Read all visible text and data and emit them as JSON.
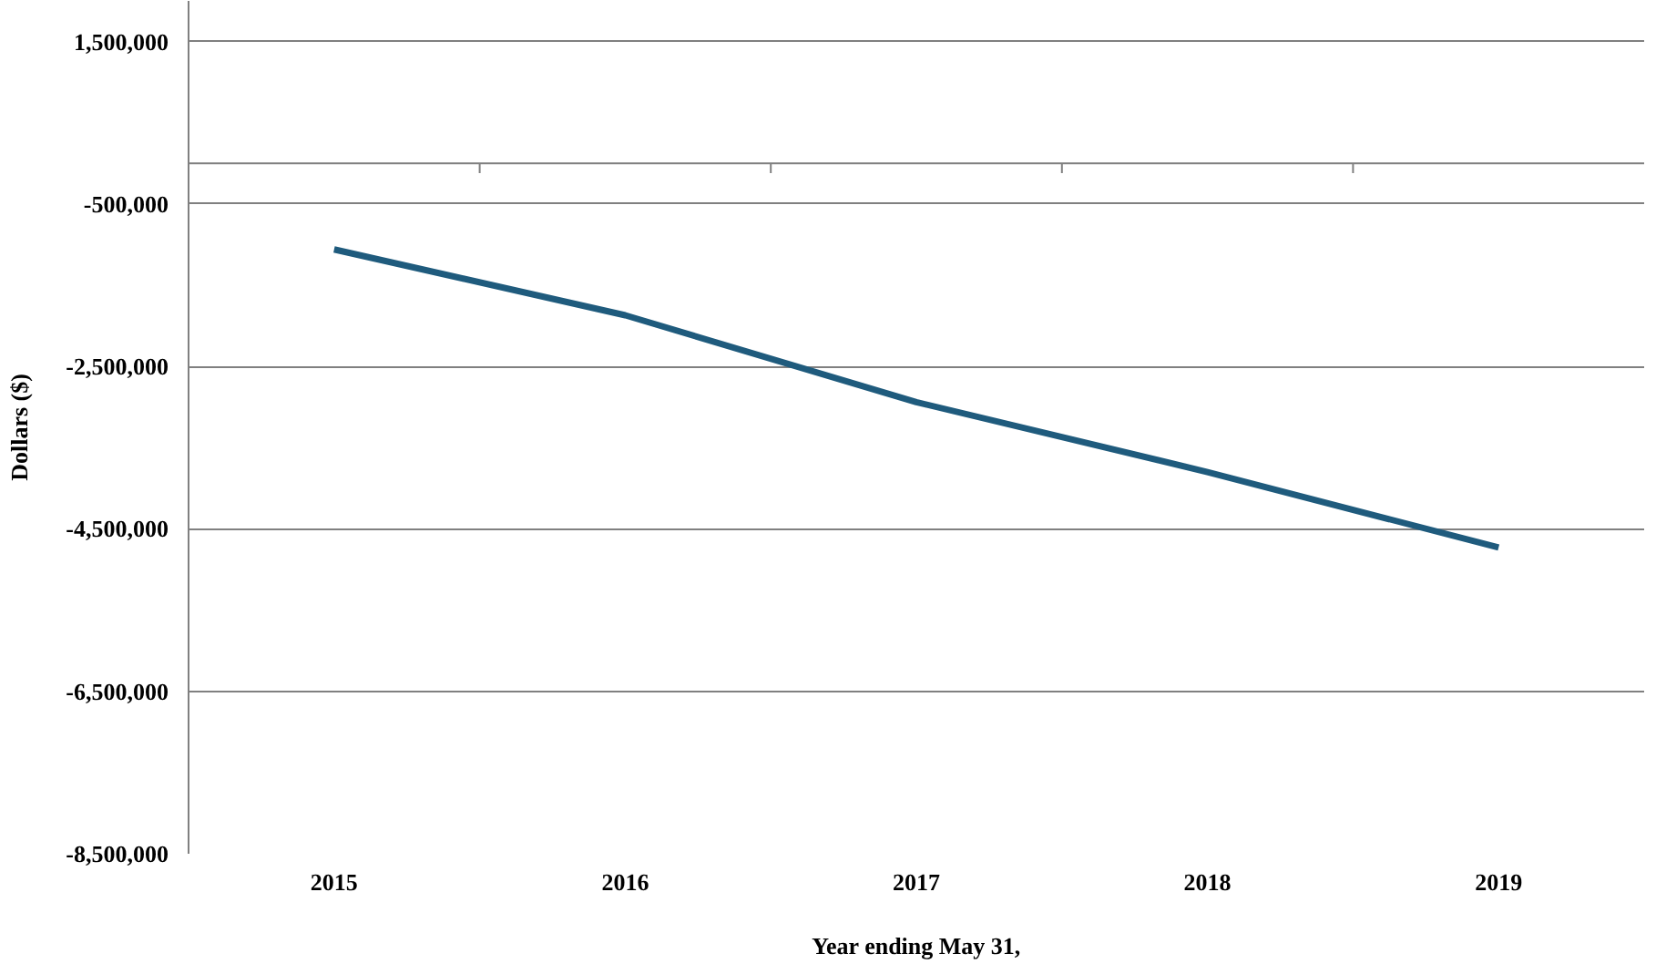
{
  "chart_data": {
    "type": "line",
    "xlabel": "Year ending May 31,",
    "ylabel": "Dollars ($)",
    "categories": [
      "2015",
      "2016",
      "2017",
      "2018",
      "2019"
    ],
    "series": [
      {
        "color": "#1f5b7d",
        "values": [
          -1060000,
          -1870000,
          -2940000,
          -3800000,
          -4730000
        ]
      }
    ],
    "ylim": [
      -8500000,
      2000000
    ],
    "yticks": [
      {
        "value": 1500000,
        "label": "1,500,000"
      },
      {
        "value": -500000,
        "label": "-500,000"
      },
      {
        "value": -2500000,
        "label": "-2,500,000"
      },
      {
        "value": -4500000,
        "label": "-4,500,000"
      },
      {
        "value": -6500000,
        "label": "-6,500,000"
      },
      {
        "value": -8500000,
        "label": "-8,500,000"
      }
    ],
    "grid": "y",
    "marker": "none",
    "line_style": "solid"
  }
}
